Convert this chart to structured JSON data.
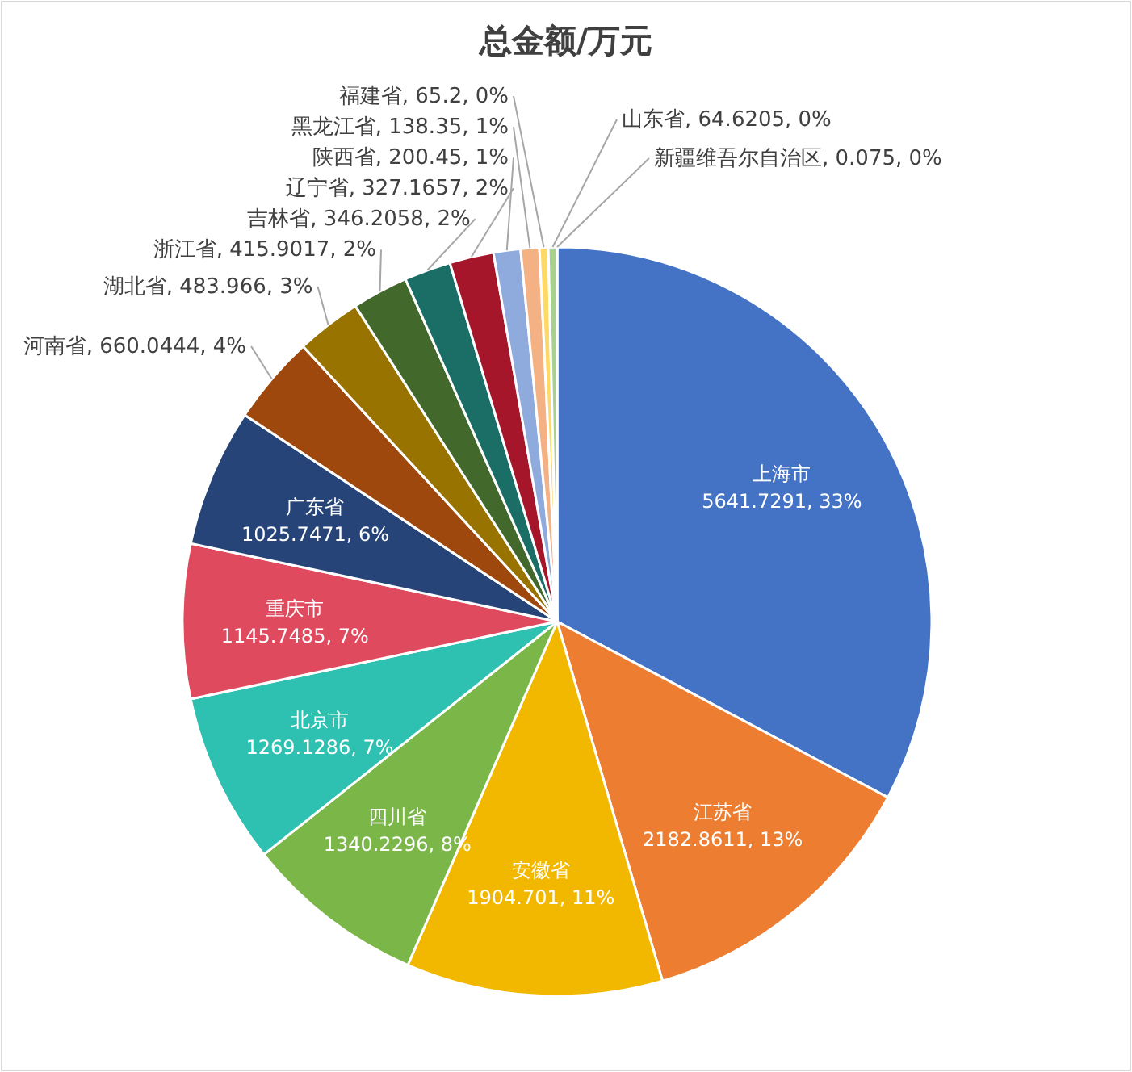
{
  "chart_data": {
    "type": "pie",
    "title": "总金额/万元",
    "categories": [
      "上海市",
      "江苏省",
      "安徽省",
      "四川省",
      "北京市",
      "重庆市",
      "广东省",
      "河南省",
      "湖北省",
      "浙江省",
      "吉林省",
      "辽宁省",
      "陕西省",
      "黑龙江省",
      "福建省",
      "山东省",
      "新疆维吾尔自治区"
    ],
    "values": [
      5641.7291,
      2182.8611,
      1904.701,
      1340.2296,
      1269.1286,
      1145.7485,
      1025.7471,
      660.0444,
      483.966,
      415.9017,
      346.2058,
      327.1657,
      200.45,
      138.35,
      65.2,
      64.6205,
      0.075
    ],
    "value_labels": [
      "5641.7291, 33%",
      "2182.8611, 13%",
      "1904.701, 11%",
      "1340.2296, 8%",
      "1269.1286, 7%",
      "1145.7485, 7%",
      "1025.7471, 6%",
      "660.0444, 4%",
      "483.966, 3%",
      "415.9017, 2%",
      "346.2058, 2%",
      "327.1657, 2%",
      "200.45, 1%",
      "138.35, 1%",
      "65.2, 0%",
      "64.6205, 0%",
      "0.075, 0%"
    ],
    "colors": [
      "#4472c4",
      "#ed7d31",
      "#f2b800",
      "#7ab648",
      "#2ec0b0",
      "#e04a5f",
      "#264478",
      "#9e480e",
      "#997300",
      "#43682b",
      "#1b6e66",
      "#a5162a",
      "#8faadc",
      "#f4b183",
      "#ffd966",
      "#a9d18e",
      "#9dc3e6"
    ],
    "legend": false
  }
}
